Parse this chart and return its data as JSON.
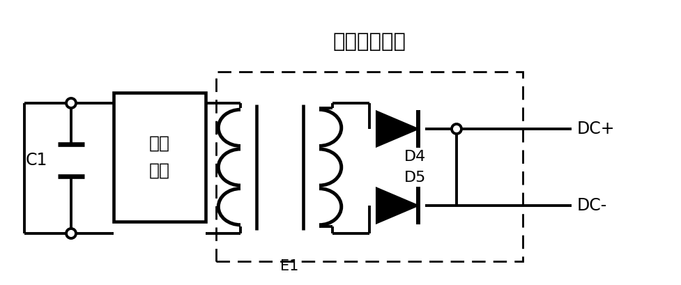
{
  "title": "变压整流电路",
  "label_c1": "C1",
  "label_inverter": "逆变\n电路",
  "label_e1": "E1",
  "label_d4": "D4",
  "label_d5": "D5",
  "label_dcplus": "DC+",
  "label_dcminus": "DC-",
  "bg_color": "#ffffff",
  "line_color": "#000000",
  "line_width": 2.8,
  "figsize": [
    9.78,
    4.09
  ],
  "dpi": 100
}
